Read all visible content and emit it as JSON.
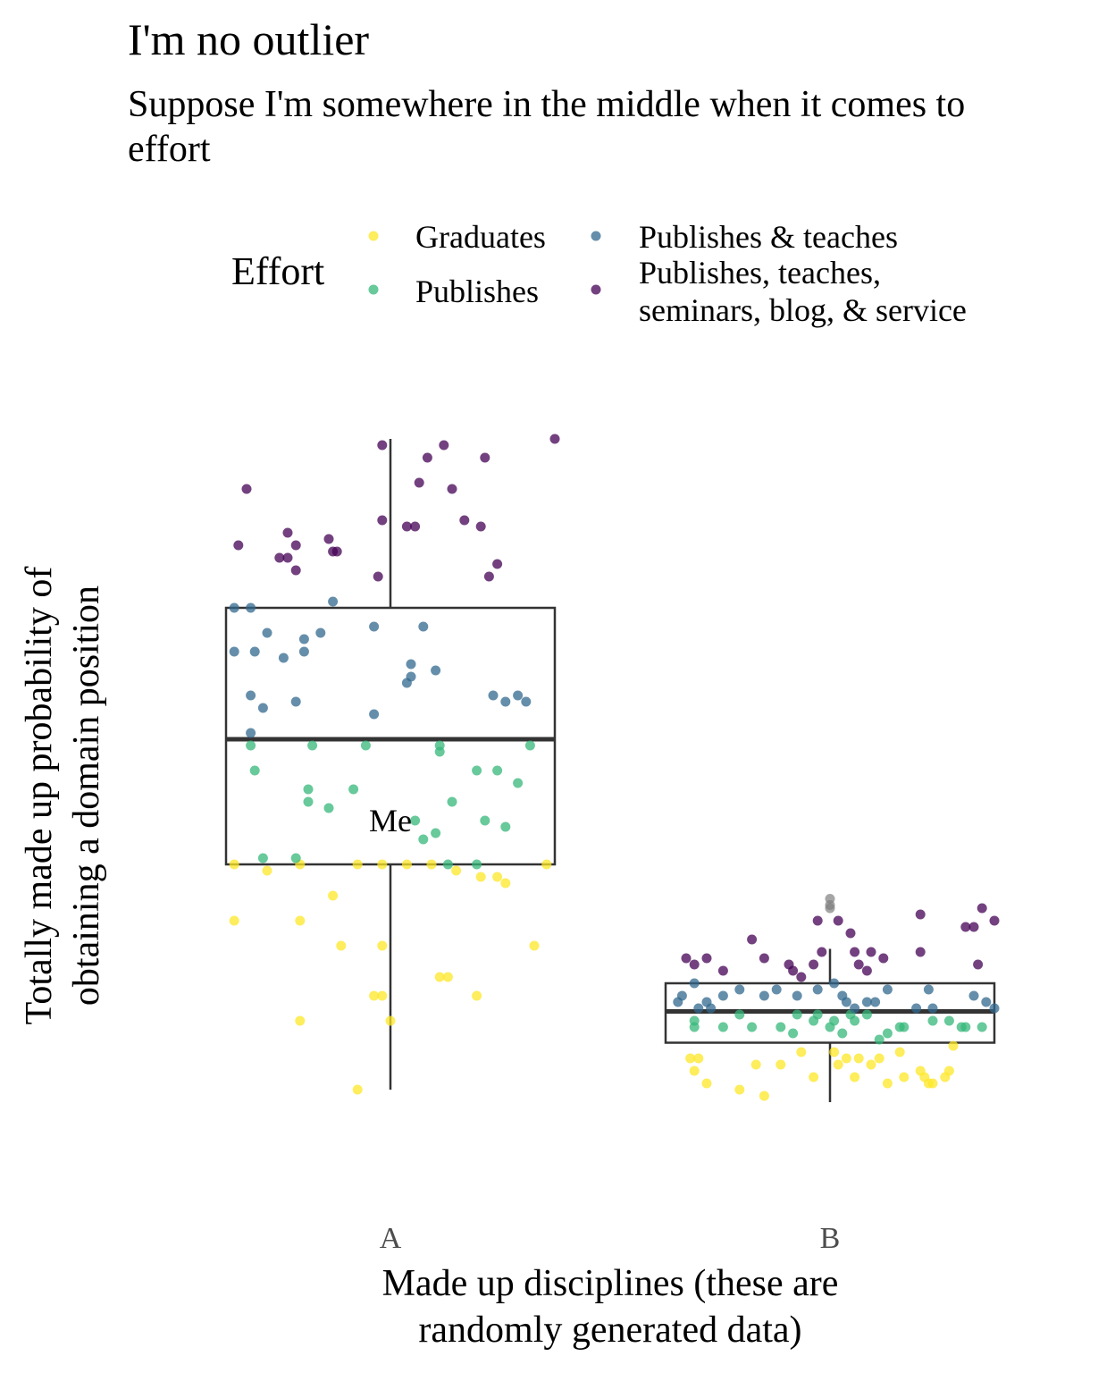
{
  "chart_data": {
    "type": "box+jitter",
    "title": "I'm no outlier",
    "subtitle": "Suppose I'm somewhere in the middle when it comes to effort",
    "xlabel": "Made up disciplines (these are randomly generated data)",
    "ylabel": "Totally made up probability of obtaining a domain position",
    "categories": [
      "A",
      "B"
    ],
    "annotation": {
      "text": "Me",
      "category": "A",
      "y": 0.47
    },
    "legend": {
      "title": "Effort",
      "placement": "top",
      "entries": [
        {
          "label": "Graduates",
          "color": "#FDE725"
        },
        {
          "label": "Publishes",
          "color": "#35B779"
        },
        {
          "label": "Publishes & teaches",
          "color": "#31688E"
        },
        {
          "label": "Publishes, teaches, seminars, blog, & service",
          "color": "#440154"
        }
      ]
    },
    "ylim": [
      0.0,
      1.03
    ],
    "boxes": [
      {
        "category": "A",
        "q1": 0.4,
        "median": 0.6,
        "q3": 0.81,
        "whisker_low": 0.04,
        "whisker_high": 1.08
      },
      {
        "category": "B",
        "q1": 0.115,
        "median": 0.165,
        "q3": 0.21,
        "whisker_low": 0.02,
        "whisker_high": 0.265,
        "outliers": [
          0.33,
          0.335,
          0.345
        ]
      }
    ],
    "series": [
      {
        "name": "Graduates",
        "category": "A",
        "points": [
          [
            -0.38,
            0.4
          ],
          [
            -0.3,
            0.39
          ],
          [
            -0.22,
            0.4
          ],
          [
            -0.14,
            0.35
          ],
          [
            -0.08,
            0.4
          ],
          [
            -0.02,
            0.4
          ],
          [
            0.04,
            0.4
          ],
          [
            0.1,
            0.4
          ],
          [
            0.16,
            0.39
          ],
          [
            0.22,
            0.38
          ],
          [
            0.26,
            0.38
          ],
          [
            0.28,
            0.37
          ],
          [
            0.38,
            0.4
          ],
          [
            -0.38,
            0.31
          ],
          [
            -0.22,
            0.31
          ],
          [
            -0.12,
            0.27
          ],
          [
            -0.02,
            0.27
          ],
          [
            0.35,
            0.27
          ],
          [
            0.12,
            0.22
          ],
          [
            0.14,
            0.22
          ],
          [
            0.21,
            0.19
          ],
          [
            -0.04,
            0.19
          ],
          [
            -0.02,
            0.19
          ],
          [
            -0.22,
            0.15
          ],
          [
            0.0,
            0.15
          ],
          [
            -0.08,
            0.04
          ]
        ]
      },
      {
        "name": "Publishes",
        "category": "A",
        "points": [
          [
            -0.34,
            0.59
          ],
          [
            -0.19,
            0.59
          ],
          [
            -0.06,
            0.59
          ],
          [
            0.12,
            0.59
          ],
          [
            0.12,
            0.58
          ],
          [
            0.34,
            0.59
          ],
          [
            -0.33,
            0.55
          ],
          [
            0.21,
            0.55
          ],
          [
            0.26,
            0.55
          ],
          [
            0.31,
            0.53
          ],
          [
            -0.2,
            0.52
          ],
          [
            -0.09,
            0.52
          ],
          [
            -0.2,
            0.5
          ],
          [
            -0.15,
            0.49
          ],
          [
            0.15,
            0.5
          ],
          [
            0.06,
            0.47
          ],
          [
            0.23,
            0.47
          ],
          [
            0.28,
            0.46
          ],
          [
            0.11,
            0.45
          ],
          [
            0.08,
            0.44
          ],
          [
            -0.31,
            0.41
          ],
          [
            -0.23,
            0.41
          ],
          [
            0.14,
            0.4
          ],
          [
            0.21,
            0.4
          ]
        ]
      },
      {
        "name": "Publishes & teaches",
        "category": "A",
        "points": [
          [
            -0.38,
            0.81
          ],
          [
            -0.34,
            0.81
          ],
          [
            -0.14,
            0.82
          ],
          [
            -0.04,
            0.78
          ],
          [
            -0.3,
            0.77
          ],
          [
            -0.21,
            0.76
          ],
          [
            -0.17,
            0.77
          ],
          [
            -0.38,
            0.74
          ],
          [
            -0.33,
            0.74
          ],
          [
            -0.26,
            0.73
          ],
          [
            -0.21,
            0.74
          ],
          [
            0.08,
            0.78
          ],
          [
            0.05,
            0.72
          ],
          [
            0.11,
            0.71
          ],
          [
            0.05,
            0.7
          ],
          [
            0.04,
            0.69
          ],
          [
            0.25,
            0.67
          ],
          [
            0.28,
            0.66
          ],
          [
            0.31,
            0.67
          ],
          [
            0.33,
            0.66
          ],
          [
            -0.34,
            0.67
          ],
          [
            -0.31,
            0.65
          ],
          [
            -0.23,
            0.66
          ],
          [
            -0.34,
            0.61
          ],
          [
            -0.04,
            0.64
          ]
        ]
      },
      {
        "name": "Publishes, teaches, seminars, blog, & service",
        "category": "A",
        "points": [
          [
            -0.35,
            1.0
          ],
          [
            -0.37,
            0.91
          ],
          [
            -0.25,
            0.93
          ],
          [
            -0.23,
            0.91
          ],
          [
            -0.15,
            0.92
          ],
          [
            -0.14,
            0.9
          ],
          [
            -0.13,
            0.9
          ],
          [
            -0.27,
            0.89
          ],
          [
            -0.25,
            0.89
          ],
          [
            -0.23,
            0.87
          ],
          [
            -0.02,
            1.07
          ],
          [
            0.13,
            1.07
          ],
          [
            0.09,
            1.05
          ],
          [
            0.23,
            1.05
          ],
          [
            0.07,
            1.01
          ],
          [
            0.15,
            1.0
          ],
          [
            0.18,
            0.95
          ],
          [
            0.22,
            0.94
          ],
          [
            -0.02,
            0.95
          ],
          [
            0.04,
            0.94
          ],
          [
            0.06,
            0.94
          ],
          [
            0.24,
            0.86
          ],
          [
            0.26,
            0.88
          ],
          [
            -0.03,
            0.86
          ],
          [
            0.4,
            1.08
          ]
        ]
      },
      {
        "name": "Graduates",
        "category": "B",
        "points": [
          [
            -0.34,
            0.09
          ],
          [
            -0.33,
            0.07
          ],
          [
            -0.32,
            0.09
          ],
          [
            -0.3,
            0.05
          ],
          [
            -0.22,
            0.04
          ],
          [
            -0.18,
            0.08
          ],
          [
            -0.16,
            0.03
          ],
          [
            -0.12,
            0.08
          ],
          [
            -0.07,
            0.1
          ],
          [
            -0.04,
            0.06
          ],
          [
            0.01,
            0.1
          ],
          [
            0.02,
            0.08
          ],
          [
            0.04,
            0.09
          ],
          [
            0.06,
            0.06
          ],
          [
            0.07,
            0.09
          ],
          [
            0.1,
            0.08
          ],
          [
            0.12,
            0.09
          ],
          [
            0.14,
            0.05
          ],
          [
            0.17,
            0.1
          ],
          [
            0.18,
            0.06
          ],
          [
            0.22,
            0.07
          ],
          [
            0.23,
            0.06
          ],
          [
            0.24,
            0.05
          ],
          [
            0.25,
            0.05
          ],
          [
            0.28,
            0.06
          ],
          [
            0.3,
            0.11
          ],
          [
            0.29,
            0.07
          ]
        ]
      },
      {
        "name": "Publishes",
        "category": "B",
        "points": [
          [
            -0.33,
            0.15
          ],
          [
            -0.33,
            0.14
          ],
          [
            -0.26,
            0.14
          ],
          [
            -0.22,
            0.16
          ],
          [
            -0.19,
            0.14
          ],
          [
            -0.12,
            0.14
          ],
          [
            -0.09,
            0.13
          ],
          [
            -0.08,
            0.16
          ],
          [
            -0.04,
            0.15
          ],
          [
            -0.03,
            0.16
          ],
          [
            0.0,
            0.14
          ],
          [
            0.01,
            0.15
          ],
          [
            0.03,
            0.13
          ],
          [
            0.05,
            0.16
          ],
          [
            0.06,
            0.15
          ],
          [
            0.09,
            0.16
          ],
          [
            0.12,
            0.12
          ],
          [
            0.14,
            0.13
          ],
          [
            0.17,
            0.14
          ],
          [
            0.18,
            0.14
          ],
          [
            0.25,
            0.15
          ],
          [
            0.29,
            0.15
          ],
          [
            0.32,
            0.14
          ],
          [
            0.33,
            0.14
          ],
          [
            0.37,
            0.14
          ]
        ]
      },
      {
        "name": "Publishes & teaches",
        "category": "B",
        "points": [
          [
            -0.37,
            0.18
          ],
          [
            -0.36,
            0.19
          ],
          [
            -0.33,
            0.21
          ],
          [
            -0.32,
            0.17
          ],
          [
            -0.3,
            0.18
          ],
          [
            -0.29,
            0.17
          ],
          [
            -0.26,
            0.19
          ],
          [
            -0.22,
            0.2
          ],
          [
            -0.16,
            0.19
          ],
          [
            -0.13,
            0.2
          ],
          [
            -0.08,
            0.19
          ],
          [
            -0.03,
            0.2
          ],
          [
            0.01,
            0.21
          ],
          [
            0.03,
            0.19
          ],
          [
            0.04,
            0.18
          ],
          [
            0.06,
            0.17
          ],
          [
            0.09,
            0.18
          ],
          [
            0.11,
            0.18
          ],
          [
            0.14,
            0.2
          ],
          [
            0.21,
            0.17
          ],
          [
            0.24,
            0.2
          ],
          [
            0.25,
            0.17
          ],
          [
            0.35,
            0.19
          ],
          [
            0.38,
            0.18
          ],
          [
            0.4,
            0.17
          ]
        ]
      },
      {
        "name": "Publishes, teaches, seminars, blog, & service",
        "category": "B",
        "points": [
          [
            -0.35,
            0.25
          ],
          [
            -0.33,
            0.24
          ],
          [
            -0.3,
            0.25
          ],
          [
            -0.26,
            0.23
          ],
          [
            -0.19,
            0.28
          ],
          [
            -0.16,
            0.25
          ],
          [
            -0.1,
            0.24
          ],
          [
            -0.09,
            0.23
          ],
          [
            -0.07,
            0.22
          ],
          [
            -0.04,
            0.24
          ],
          [
            -0.02,
            0.26
          ],
          [
            -0.03,
            0.31
          ],
          [
            0.02,
            0.31
          ],
          [
            0.05,
            0.29
          ],
          [
            0.06,
            0.26
          ],
          [
            0.07,
            0.24
          ],
          [
            0.09,
            0.23
          ],
          [
            0.1,
            0.26
          ],
          [
            0.13,
            0.25
          ],
          [
            0.22,
            0.32
          ],
          [
            0.22,
            0.26
          ],
          [
            0.33,
            0.3
          ],
          [
            0.35,
            0.3
          ],
          [
            0.37,
            0.33
          ],
          [
            0.4,
            0.31
          ],
          [
            0.36,
            0.24
          ]
        ]
      }
    ]
  }
}
